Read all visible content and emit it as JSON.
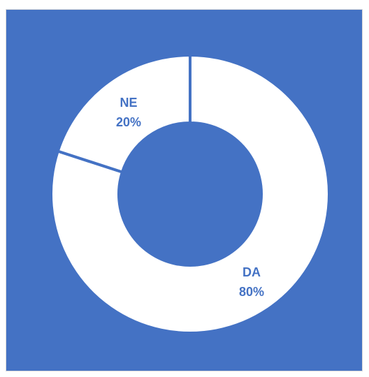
{
  "chart_data": {
    "type": "pie",
    "variant": "doughnut",
    "title": "",
    "categories": [
      "NE",
      "DA"
    ],
    "values": [
      20,
      80
    ],
    "value_labels": [
      "20%",
      "80%"
    ],
    "start_category": "DA",
    "direction": "clockwise",
    "legend": "none",
    "colors": {
      "background": "#4472C4",
      "slice_fill": "#FFFFFF",
      "slice_border": "#4472C4",
      "label_text": "#4472C4"
    }
  }
}
